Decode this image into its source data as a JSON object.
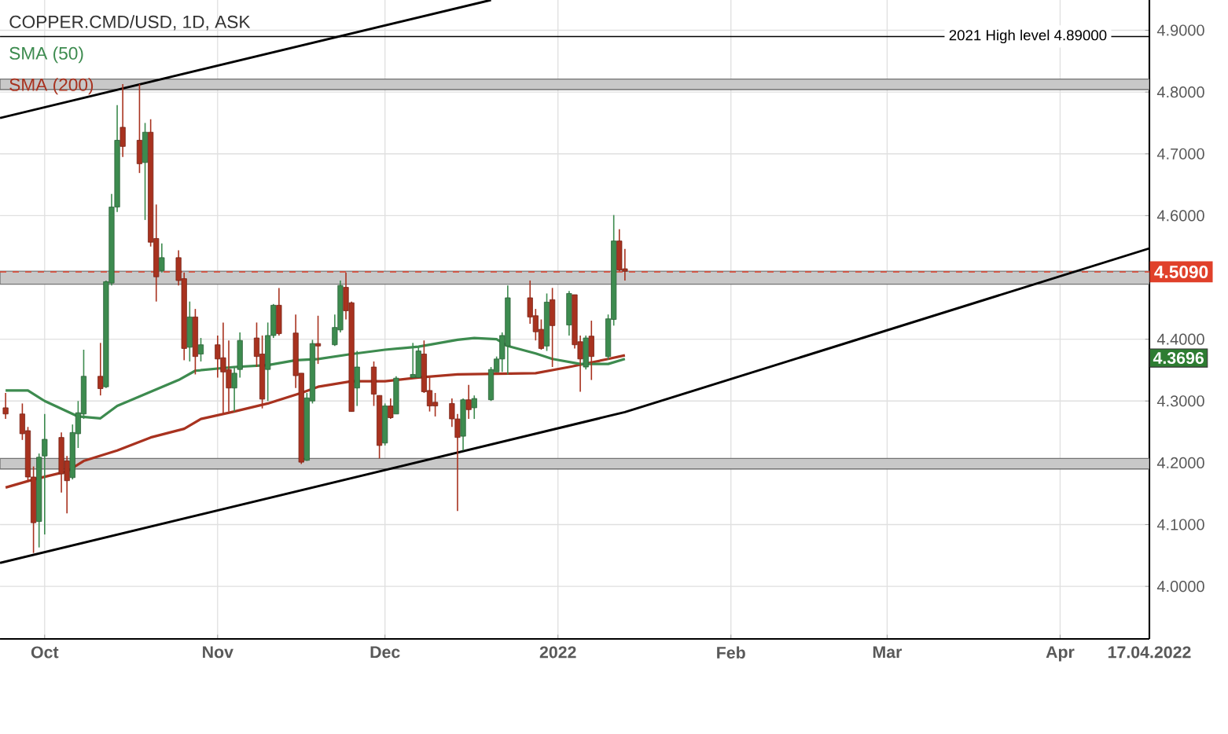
{
  "chart_data": {
    "type": "candlestick",
    "title": "COPPER.CMD/USD, 1D, ASK",
    "x": [
      "2021-09-24",
      "2021-09-27",
      "2021-09-28",
      "2021-09-29",
      "2021-09-30",
      "2021-10-01",
      "2021-10-04",
      "2021-10-05",
      "2021-10-06",
      "2021-10-07",
      "2021-10-08",
      "2021-10-11",
      "2021-10-12",
      "2021-10-13",
      "2021-10-14",
      "2021-10-15",
      "2021-10-18",
      "2021-10-19",
      "2021-10-20",
      "2021-10-21",
      "2021-10-22",
      "2021-10-25",
      "2021-10-26",
      "2021-10-27",
      "2021-10-28",
      "2021-10-29",
      "2021-11-01",
      "2021-11-02",
      "2021-11-03",
      "2021-11-04",
      "2021-11-05",
      "2021-11-08",
      "2021-11-09",
      "2021-11-10",
      "2021-11-11",
      "2021-11-12",
      "2021-11-15",
      "2021-11-16",
      "2021-11-17",
      "2021-11-18",
      "2021-11-19",
      "2021-11-22",
      "2021-11-23",
      "2021-11-24",
      "2021-11-25",
      "2021-11-26",
      "2021-11-29",
      "2021-11-30",
      "2021-12-01",
      "2021-12-02",
      "2021-12-03",
      "2021-12-06",
      "2021-12-07",
      "2021-12-08",
      "2021-12-09",
      "2021-12-10",
      "2021-12-13",
      "2021-12-14",
      "2021-12-15",
      "2021-12-16",
      "2021-12-17",
      "2021-12-20",
      "2021-12-21",
      "2021-12-22",
      "2021-12-23",
      "2021-12-27",
      "2021-12-28",
      "2021-12-29",
      "2021-12-30",
      "2021-12-31",
      "2022-01-03",
      "2022-01-04",
      "2022-01-05",
      "2022-01-06",
      "2022-01-07",
      "2022-01-10",
      "2022-01-11",
      "2022-01-12",
      "2022-01-13"
    ],
    "ohlc": [
      [
        4.289,
        4.313,
        4.271,
        4.279
      ],
      [
        4.279,
        4.296,
        4.237,
        4.247
      ],
      [
        4.252,
        4.258,
        4.169,
        4.177
      ],
      [
        4.177,
        4.194,
        4.054,
        4.103
      ],
      [
        4.105,
        4.215,
        4.063,
        4.209
      ],
      [
        4.211,
        4.279,
        4.084,
        4.238
      ],
      [
        4.241,
        4.249,
        4.152,
        4.182
      ],
      [
        4.203,
        4.211,
        4.118,
        4.171
      ],
      [
        4.176,
        4.262,
        4.173,
        4.249
      ],
      [
        4.247,
        4.3,
        4.224,
        4.281
      ],
      [
        4.279,
        4.383,
        4.271,
        4.34
      ],
      [
        4.34,
        4.394,
        4.309,
        4.32
      ],
      [
        4.323,
        4.495,
        4.321,
        4.493
      ],
      [
        4.491,
        4.635,
        4.487,
        4.614
      ],
      [
        4.614,
        4.779,
        4.606,
        4.722
      ],
      [
        4.743,
        4.813,
        4.695,
        4.712
      ],
      [
        4.722,
        4.813,
        4.669,
        4.684
      ],
      [
        4.686,
        4.75,
        4.593,
        4.735
      ],
      [
        4.735,
        4.756,
        4.55,
        4.557
      ],
      [
        4.563,
        4.618,
        4.461,
        4.501
      ],
      [
        4.511,
        4.555,
        4.508,
        4.532
      ],
      [
        4.532,
        4.544,
        4.487,
        4.495
      ],
      [
        4.498,
        4.508,
        4.366,
        4.385
      ],
      [
        4.387,
        4.461,
        4.364,
        4.436
      ],
      [
        4.436,
        4.449,
        4.343,
        4.372
      ],
      [
        4.376,
        4.402,
        4.364,
        4.391
      ],
      [
        4.391,
        4.406,
        4.338,
        4.368
      ],
      [
        4.37,
        4.427,
        4.279,
        4.347
      ],
      [
        4.351,
        4.398,
        4.283,
        4.321
      ],
      [
        4.321,
        4.355,
        4.283,
        4.345
      ],
      [
        4.351,
        4.411,
        4.338,
        4.398
      ],
      [
        4.402,
        4.427,
        4.355,
        4.372
      ],
      [
        4.376,
        4.406,
        4.288,
        4.303
      ],
      [
        4.351,
        4.427,
        4.3,
        4.406
      ],
      [
        4.406,
        4.457,
        4.402,
        4.455
      ],
      [
        4.455,
        4.483,
        4.406,
        4.409
      ],
      [
        4.41,
        4.44,
        4.321,
        4.341
      ],
      [
        4.345,
        4.345,
        4.198,
        4.201
      ],
      [
        4.204,
        4.313,
        4.203,
        4.305
      ],
      [
        4.3,
        4.399,
        4.296,
        4.393
      ],
      [
        4.393,
        4.438,
        4.36,
        4.389
      ],
      [
        4.391,
        4.44,
        4.389,
        4.419
      ],
      [
        4.415,
        4.495,
        4.411,
        4.487
      ],
      [
        4.484,
        4.508,
        4.432,
        4.446
      ],
      [
        4.459,
        4.461,
        4.283,
        4.283
      ],
      [
        4.321,
        4.381,
        4.292,
        4.355
      ],
      [
        4.355,
        4.364,
        4.292,
        4.311
      ],
      [
        4.309,
        4.309,
        4.207,
        4.228
      ],
      [
        4.232,
        4.296,
        4.228,
        4.292
      ],
      [
        4.292,
        4.304,
        4.271,
        4.273
      ],
      [
        4.279,
        4.34,
        4.279,
        4.337
      ],
      [
        4.338,
        4.394,
        4.338,
        4.343
      ],
      [
        4.338,
        4.389,
        4.338,
        4.381
      ],
      [
        4.376,
        4.398,
        4.313,
        4.315
      ],
      [
        4.317,
        4.338,
        4.283,
        4.292
      ],
      [
        4.298,
        4.313,
        4.275,
        4.292
      ],
      [
        4.296,
        4.304,
        4.258,
        4.271
      ],
      [
        4.271,
        4.279,
        4.122,
        4.241
      ],
      [
        4.243,
        4.304,
        4.22,
        4.302
      ],
      [
        4.302,
        4.326,
        4.271,
        4.286
      ],
      [
        4.289,
        4.309,
        4.271,
        4.304
      ],
      [
        4.302,
        4.355,
        4.3,
        4.351
      ],
      [
        4.347,
        4.372,
        4.347,
        4.368
      ],
      [
        4.368,
        4.411,
        4.347,
        4.406
      ],
      [
        4.389,
        4.487,
        4.343,
        4.467
      ],
      [
        4.467,
        4.495,
        4.425,
        4.436
      ],
      [
        4.438,
        4.449,
        4.398,
        4.412
      ],
      [
        4.416,
        4.432,
        4.383,
        4.385
      ],
      [
        4.389,
        4.474,
        4.381,
        4.46
      ],
      [
        4.464,
        4.483,
        4.355,
        4.422
      ],
      [
        4.423,
        4.478,
        4.406,
        4.474
      ],
      [
        4.472,
        4.472,
        4.385,
        4.391
      ],
      [
        4.396,
        4.406,
        4.315,
        4.368
      ],
      [
        4.355,
        4.406,
        4.351,
        4.402
      ],
      [
        4.405,
        4.43,
        4.334,
        4.372
      ],
      [
        4.372,
        4.44,
        4.367,
        4.433
      ],
      [
        4.432,
        4.601,
        4.422,
        4.559
      ],
      [
        4.559,
        4.578,
        4.51,
        4.512
      ],
      [
        4.514,
        4.546,
        4.495,
        4.51
      ]
    ],
    "colors": [
      "#a8321f",
      "#a8321f",
      "#a8321f",
      "#a8321f",
      "#3d8b4f",
      "#3d8b4f",
      "#a8321f",
      "#a8321f",
      "#3d8b4f",
      "#3d8b4f",
      "#3d8b4f",
      "#a8321f",
      "#3d8b4f",
      "#3d8b4f",
      "#3d8b4f",
      "#a8321f",
      "#a8321f",
      "#3d8b4f",
      "#a8321f",
      "#a8321f",
      "#3d8b4f",
      "#a8321f",
      "#a8321f",
      "#3d8b4f",
      "#a8321f",
      "#3d8b4f",
      "#a8321f",
      "#a8321f",
      "#a8321f",
      "#3d8b4f",
      "#3d8b4f",
      "#a8321f",
      "#a8321f",
      "#3d8b4f",
      "#3d8b4f",
      "#a8321f",
      "#a8321f",
      "#a8321f",
      "#3d8b4f",
      "#3d8b4f",
      "#a8321f",
      "#3d8b4f",
      "#3d8b4f",
      "#a8321f",
      "#a8321f",
      "#3d8b4f",
      "#a8321f",
      "#a8321f",
      "#3d8b4f",
      "#a8321f",
      "#3d8b4f",
      "#3d8b4f",
      "#3d8b4f",
      "#a8321f",
      "#a8321f",
      "#a8321f",
      "#a8321f",
      "#a8321f",
      "#3d8b4f",
      "#a8321f",
      "#3d8b4f",
      "#3d8b4f",
      "#3d8b4f",
      "#3d8b4f",
      "#3d8b4f",
      "#a8321f",
      "#a8321f",
      "#a8321f",
      "#3d8b4f",
      "#a8321f",
      "#3d8b4f",
      "#a8321f",
      "#a8321f",
      "#3d8b4f",
      "#a8321f",
      "#3d8b4f",
      "#3d8b4f",
      "#a8321f",
      "#a8321f"
    ],
    "series": [
      {
        "type": "line",
        "color": "#000000",
        "x": [
          "2021-09-23",
          "2021-12-20"
        ],
        "values": [
          4.758,
          4.949
        ]
      },
      {
        "type": "line",
        "color": "#000000",
        "x": [
          "2021-09-23",
          "2022-01-13",
          "2022-04-17"
        ],
        "values": [
          4.038,
          4.282,
          4.547
        ]
      },
      {
        "type": "line",
        "name": "SMA (200)",
        "color": "#a8321f",
        "x": [
          "2021-09-24",
          "2021-09-29",
          "2021-10-05",
          "2021-10-08",
          "2021-10-14",
          "2021-10-20",
          "2021-10-26",
          "2021-10-29",
          "2021-11-04",
          "2021-11-10",
          "2021-11-16",
          "2021-11-19",
          "2021-11-25",
          "2021-12-01",
          "2021-12-07",
          "2021-12-14",
          "2021-12-28",
          "2022-01-03",
          "2022-01-10",
          "2022-01-13"
        ],
        "values": [
          4.16,
          4.173,
          4.186,
          4.203,
          4.22,
          4.241,
          4.255,
          4.271,
          4.283,
          4.296,
          4.313,
          4.323,
          4.332,
          4.332,
          4.338,
          4.343,
          4.345,
          4.355,
          4.368,
          4.374
        ]
      },
      {
        "type": "line",
        "name": "SMA (50)",
        "color": "#3d8b4f",
        "x": [
          "2021-09-24",
          "2021-09-28",
          "2021-10-01",
          "2021-10-07",
          "2021-10-11",
          "2021-10-14",
          "2021-10-20",
          "2021-10-25",
          "2021-10-28",
          "2021-11-04",
          "2021-11-10",
          "2021-11-15",
          "2021-11-19",
          "2021-11-25",
          "2021-12-01",
          "2021-12-07",
          "2021-12-14",
          "2021-12-17",
          "2021-12-21",
          "2021-12-23",
          "2021-12-28",
          "2021-12-31",
          "2022-01-05",
          "2022-01-10",
          "2022-01-13"
        ],
        "values": [
          4.317,
          4.317,
          4.3,
          4.275,
          4.272,
          4.292,
          4.315,
          4.334,
          4.349,
          4.355,
          4.358,
          4.366,
          4.368,
          4.376,
          4.383,
          4.388,
          4.399,
          4.402,
          4.4,
          4.389,
          4.377,
          4.368,
          4.36,
          4.36,
          4.368
        ]
      }
    ],
    "xlim": [
      "2021-09-23",
      "2022-04-17"
    ],
    "xticks": [
      {
        "value": "2021-10-01",
        "label": "Oct"
      },
      {
        "value": "2021-11-01",
        "label": "Nov"
      },
      {
        "value": "2021-12-01",
        "label": "Dec"
      },
      {
        "value": "2022-01-01",
        "label": "2022"
      },
      {
        "value": "2022-02-01",
        "label": "Feb"
      },
      {
        "value": "2022-03-01",
        "label": "Mar"
      },
      {
        "value": "2022-04-01",
        "label": "Apr"
      },
      {
        "value": "2022-04-17",
        "label": "17.04.2022"
      }
    ],
    "ylim": [
      3.915,
      4.949
    ],
    "yticks": [
      {
        "value": 4.0,
        "label": "4.0000"
      },
      {
        "value": 4.1,
        "label": "4.1000"
      },
      {
        "value": 4.2,
        "label": "4.2000"
      },
      {
        "value": 4.3,
        "label": "4.3000"
      },
      {
        "value": 4.4,
        "label": "4.4000"
      },
      {
        "value": 4.5,
        "label": null
      },
      {
        "value": 4.6,
        "label": "4.6000"
      },
      {
        "value": 4.7,
        "label": "4.7000"
      },
      {
        "value": 4.8,
        "label": "4.8000"
      },
      {
        "value": 4.9,
        "label": "4.9000"
      }
    ],
    "bands": [
      {
        "axis": "y",
        "from": 4.804,
        "to": 4.821,
        "color": "#c8c8c8"
      },
      {
        "axis": "y",
        "from": 4.489,
        "to": 4.51,
        "color": "#c8c8c8"
      },
      {
        "axis": "y",
        "from": 4.19,
        "to": 4.207,
        "color": "#c8c8c8"
      }
    ],
    "ref_lines": [
      {
        "axis": "y",
        "value": 4.89,
        "label": "2021 High level  4.89000",
        "color": "#000000",
        "line_style": "solid"
      },
      {
        "axis": "y",
        "value": 4.509,
        "label": "4.5090",
        "color": "#e0402a",
        "line_style": "dashed"
      }
    ],
    "annotations": [
      {
        "text": "4.3696",
        "y": 4.3696
      }
    ],
    "grid": true,
    "legend": "top left"
  }
}
